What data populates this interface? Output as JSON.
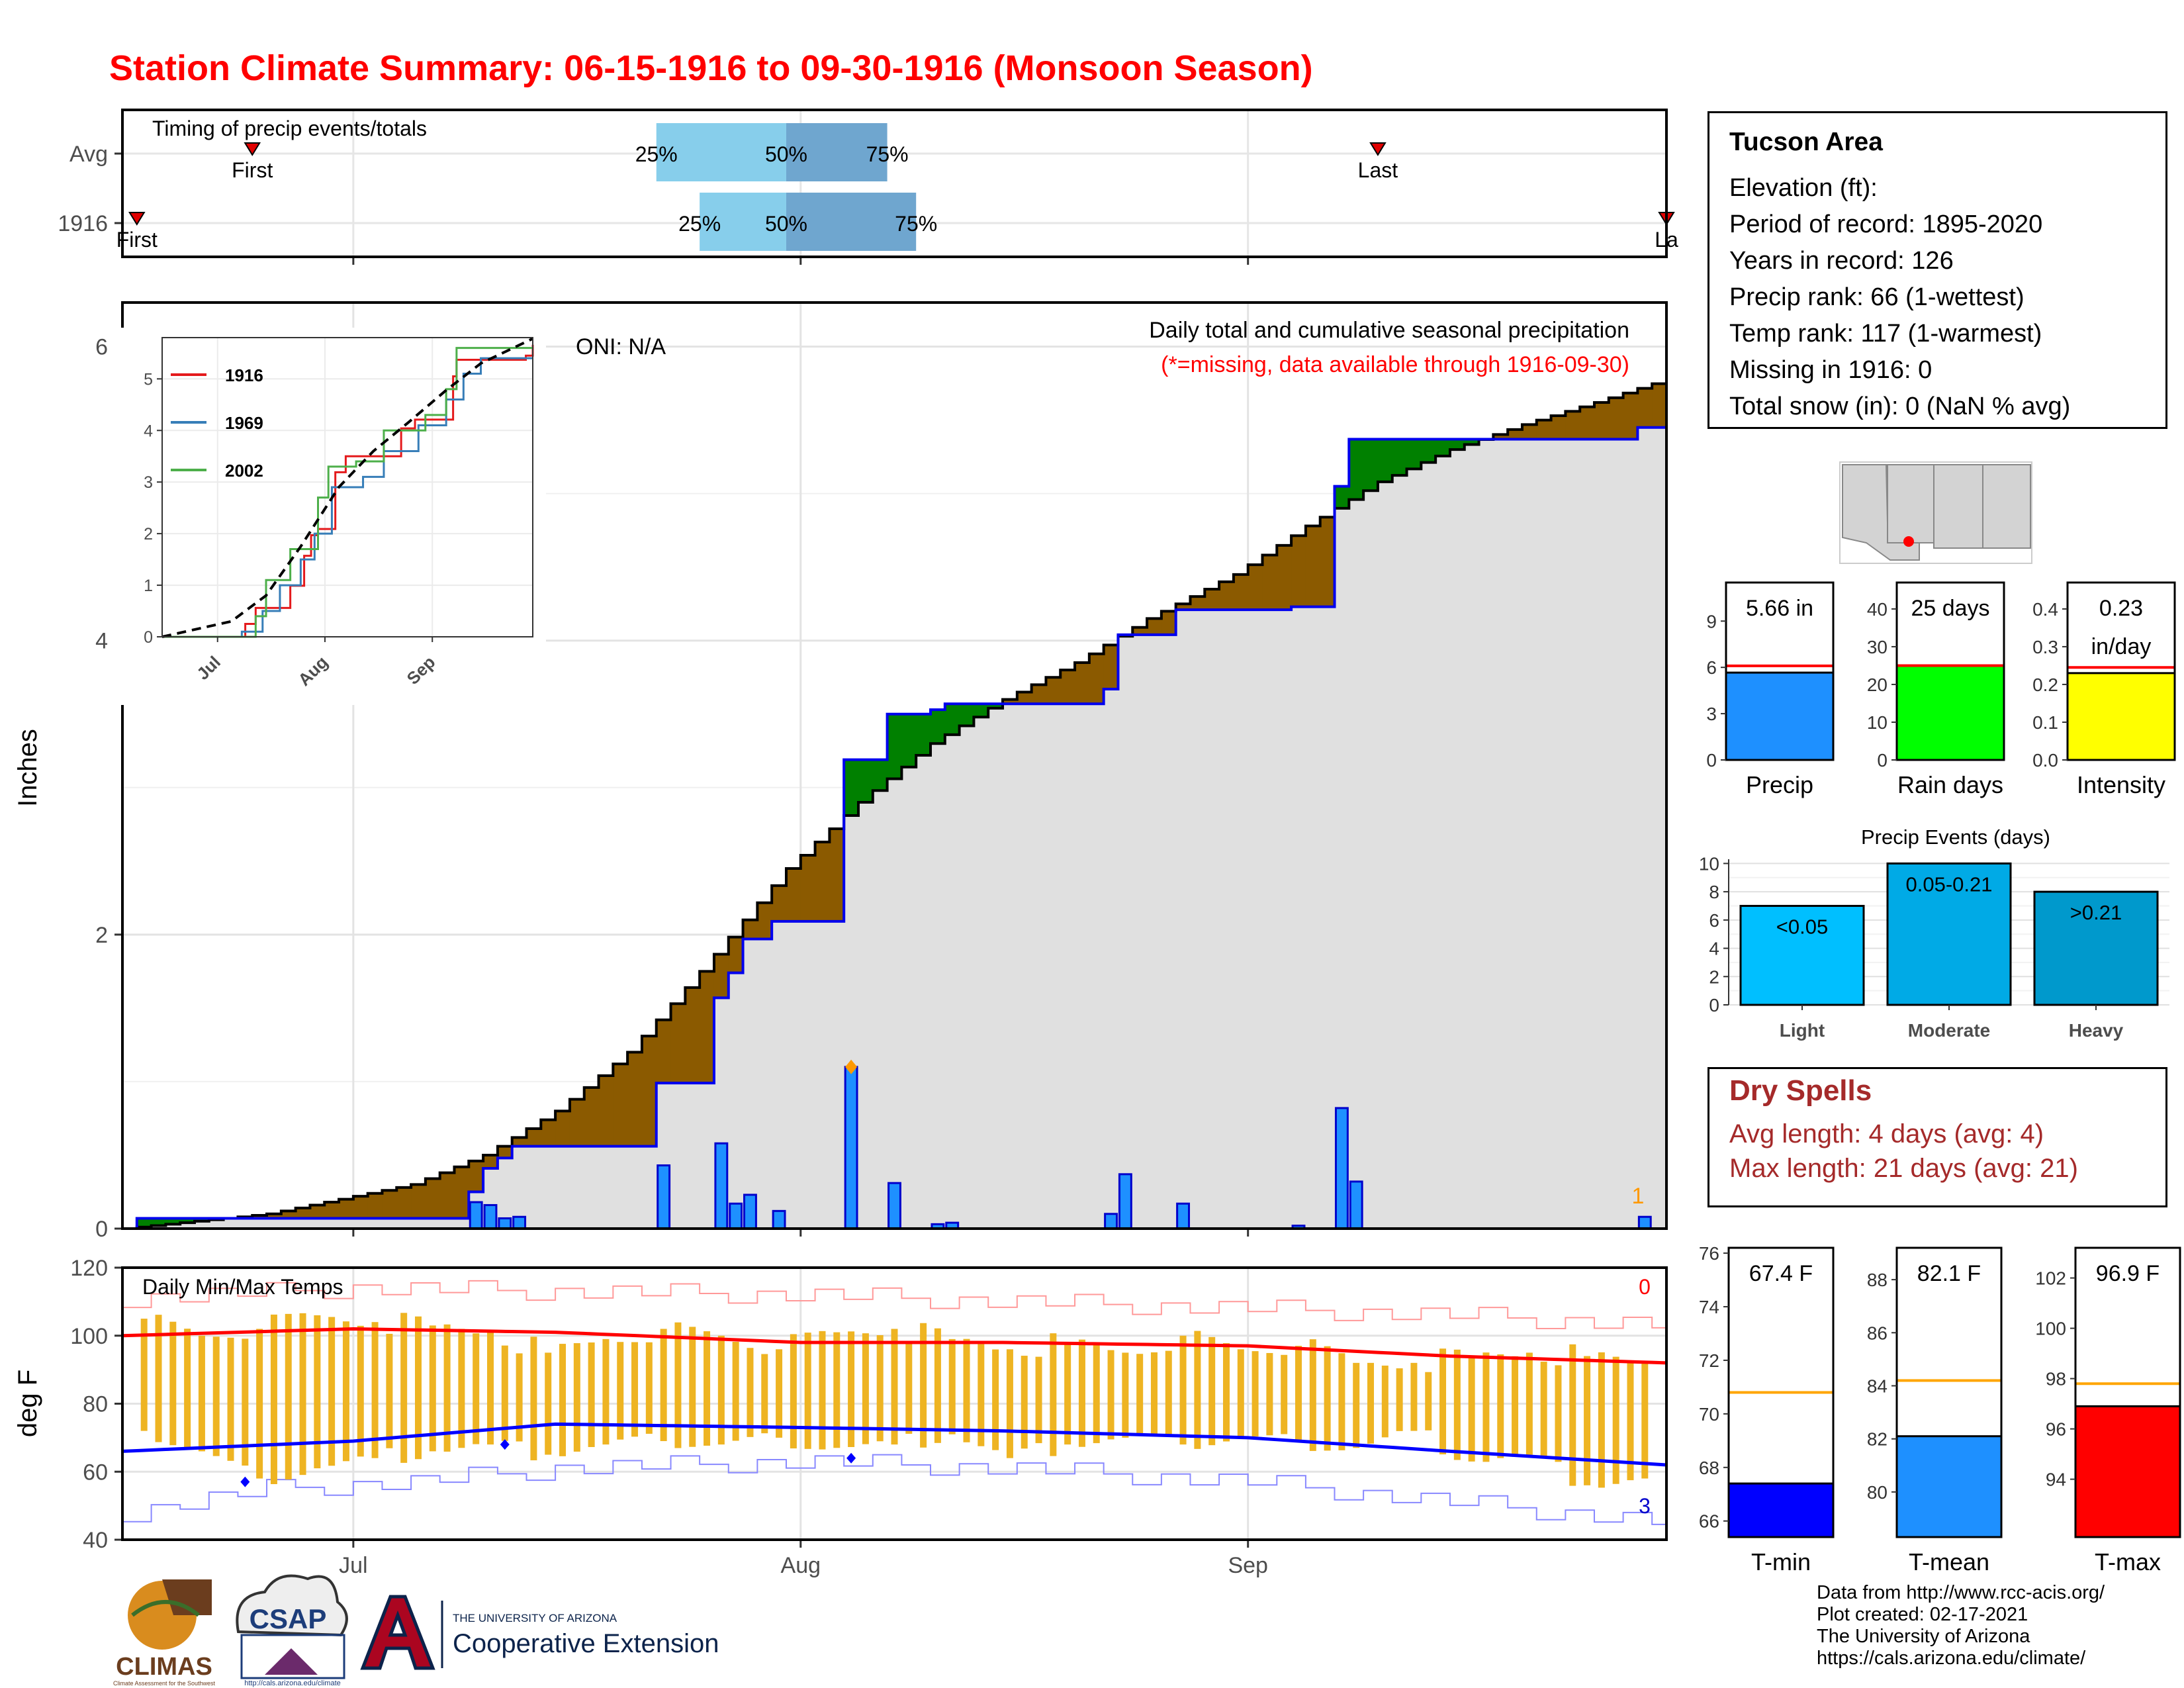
{
  "title": "Station Climate Summary: 06-15-1916 to 09-30-1916 (Monsoon Season)",
  "timing": {
    "label": "Timing of precip events/totals",
    "rows": [
      {
        "name": "Avg",
        "first": "2016-06-24",
        "last": "2016-09-10",
        "p25": "2016-07-22",
        "p50": "2016-07-31",
        "p75": "2016-08-07",
        "first_label": "First",
        "last_label": "Last",
        "p25_label": "25%",
        "p50_label": "50%",
        "p75_label": "75%"
      },
      {
        "name": "1916",
        "first": "2016-06-16",
        "last": "2016-09-30",
        "p25": "2016-07-25",
        "p50": "2016-07-31",
        "p75": "2016-08-09",
        "first_label": "First",
        "last_label": "La",
        "p25_label": "25%",
        "p50_label": "50%",
        "p75_label": "75%"
      }
    ]
  },
  "precip_panel": {
    "ylabel": "Inches",
    "oni": "ONI: N/A",
    "note_title": "Daily total and cumulative seasonal precipitation",
    "note_missing": "(*=missing, data available through 1916-09-30)",
    "corner_count": "1"
  },
  "inset": {
    "legend": [
      {
        "name": "1916",
        "color": "#e41a1c"
      },
      {
        "name": "1969",
        "color": "#377eb8"
      },
      {
        "name": "2002",
        "color": "#4daf4a"
      }
    ]
  },
  "temp_panel": {
    "title": "Daily Min/Max Temps",
    "ylabel": "deg F",
    "corner_top": "0",
    "corner_bottom": "3"
  },
  "month_ticks": [
    "Jul",
    "Aug",
    "Sep"
  ],
  "info": {
    "title": "Tucson Area",
    "lines": [
      "Elevation (ft):",
      "Period of record: 1895-2020",
      "Years in record: 126",
      "Precip rank: 66 (1-wettest)",
      "Temp rank: 117 (1-warmest)",
      "Missing in 1916: 0",
      "Total snow (in): 0 (NaN % avg)"
    ]
  },
  "summary_bars": [
    {
      "name": "Precip",
      "value": 5.66,
      "label": "5.66 in",
      "avg": 6.1,
      "ylim": [
        0,
        11.5
      ],
      "ticks": [
        0,
        3,
        6,
        9
      ],
      "color": "#1e90ff"
    },
    {
      "name": "Rain days",
      "value": 25,
      "label": "25 days",
      "avg": 25,
      "ylim": [
        0,
        47
      ],
      "ticks": [
        0,
        10,
        20,
        30,
        40
      ],
      "color": "#00ff00"
    },
    {
      "name": "Intensity",
      "value": 0.23,
      "label": "0.23 in/day",
      "label_lines": [
        "0.23",
        "in/day"
      ],
      "avg": 0.245,
      "ylim": [
        0,
        0.47
      ],
      "ticks": [
        "0.0",
        "0.1",
        "0.2",
        "0.3",
        "0.4"
      ],
      "color": "#ffff00"
    }
  ],
  "events": {
    "title": "Precip Events (days)",
    "ylim": [
      0,
      10.3
    ],
    "ticks": [
      0,
      2,
      4,
      6,
      8,
      10
    ],
    "bars": [
      {
        "name": "Light",
        "value": 7,
        "label": "<0.05",
        "color": "#00bfff"
      },
      {
        "name": "Moderate",
        "value": 10,
        "label": "0.05-0.21",
        "color": "#00aae6"
      },
      {
        "name": "Heavy",
        "value": 8,
        "label": ">0.21",
        "color": "#0099cc"
      }
    ]
  },
  "dry_spells": {
    "title": "Dry Spells",
    "avg_line": "Avg length: 4 days (avg: 4)",
    "max_line": "Max length: 21 days (avg: 21)"
  },
  "temp_bars": [
    {
      "name": "T-min",
      "value": 67.4,
      "label": "67.4 F",
      "avg": 70.8,
      "ylim": [
        65.4,
        76.2
      ],
      "ticks": [
        66,
        68,
        70,
        72,
        74,
        76
      ],
      "color": "#0000ff"
    },
    {
      "name": "T-mean",
      "value": 82.1,
      "label": "82.1 F",
      "avg": 84.2,
      "ylim": [
        78.3,
        89.2
      ],
      "ticks": [
        80,
        82,
        84,
        86,
        88
      ],
      "color": "#1e90ff"
    },
    {
      "name": "T-max",
      "value": 96.9,
      "label": "96.9 F",
      "avg": 97.8,
      "ylim": [
        91.7,
        103.2
      ],
      "ticks": [
        94,
        96,
        98,
        100,
        102
      ],
      "color": "#ff0000"
    }
  ],
  "credits": [
    "Data from http://www.rcc-acis.org/",
    "Plot created: 02-17-2021",
    "The University of Arizona",
    "https://cals.arizona.edu/climate/"
  ],
  "logos": {
    "climas": "CLIMAS",
    "csap": "CSAP",
    "ua_small": "THE UNIVERSITY OF ARIZONA",
    "ua_big": "Cooperative Extension",
    "climas_sub": "Climate Assessment for the Southwest",
    "csap_url": "http://cals.arizona.edu/climate"
  },
  "chart_data": {
    "type": "area",
    "title": "Daily total and cumulative seasonal precipitation",
    "ylabel": "Inches",
    "x_range": [
      "1916-06-15",
      "1916-09-30"
    ],
    "ylim": [
      0,
      6.3
    ],
    "yticks": [
      0,
      2,
      4,
      6
    ],
    "daily_precip_1916": [
      {
        "date": "1916-07-09",
        "in": 0.18
      },
      {
        "date": "1916-07-10",
        "in": 0.16
      },
      {
        "date": "1916-07-11",
        "in": 0.07
      },
      {
        "date": "1916-07-12",
        "in": 0.08
      },
      {
        "date": "1916-07-22",
        "in": 0.43
      },
      {
        "date": "1916-07-26",
        "in": 0.58
      },
      {
        "date": "1916-07-27",
        "in": 0.17
      },
      {
        "date": "1916-07-28",
        "in": 0.23
      },
      {
        "date": "1916-07-30",
        "in": 0.12
      },
      {
        "date": "1916-08-04",
        "in": 1.1
      },
      {
        "date": "1916-08-07",
        "in": 0.31
      },
      {
        "date": "1916-08-10",
        "in": 0.03
      },
      {
        "date": "1916-08-11",
        "in": 0.04
      },
      {
        "date": "1916-08-22",
        "in": 0.1
      },
      {
        "date": "1916-08-23",
        "in": 0.37
      },
      {
        "date": "1916-08-27",
        "in": 0.17
      },
      {
        "date": "1916-09-04",
        "in": 0.02
      },
      {
        "date": "1916-09-07",
        "in": 0.82
      },
      {
        "date": "1916-09-08",
        "in": 0.32
      },
      {
        "date": "1916-09-28",
        "in": 0.08
      }
    ],
    "cumulative_1916": [
      {
        "date": "1916-06-15",
        "in": 0.0
      },
      {
        "date": "1916-06-16",
        "in": 0.07
      },
      {
        "date": "1916-07-09",
        "in": 0.25
      },
      {
        "date": "1916-07-10",
        "in": 0.41
      },
      {
        "date": "1916-07-11",
        "in": 0.48
      },
      {
        "date": "1916-07-12",
        "in": 0.56
      },
      {
        "date": "1916-07-22",
        "in": 0.99
      },
      {
        "date": "1916-07-26",
        "in": 1.57
      },
      {
        "date": "1916-07-27",
        "in": 1.74
      },
      {
        "date": "1916-07-28",
        "in": 1.97
      },
      {
        "date": "1916-07-30",
        "in": 2.09
      },
      {
        "date": "1916-08-04",
        "in": 3.19
      },
      {
        "date": "1916-08-07",
        "in": 3.5
      },
      {
        "date": "1916-08-10",
        "in": 3.53
      },
      {
        "date": "1916-08-11",
        "in": 3.57
      },
      {
        "date": "1916-08-22",
        "in": 3.67
      },
      {
        "date": "1916-08-23",
        "in": 4.04
      },
      {
        "date": "1916-08-27",
        "in": 4.21
      },
      {
        "date": "1916-09-04",
        "in": 4.23
      },
      {
        "date": "1916-09-07",
        "in": 5.05
      },
      {
        "date": "1916-09-08",
        "in": 5.37
      },
      {
        "date": "1916-09-28",
        "in": 5.45
      },
      {
        "date": "1916-09-30",
        "in": 5.66
      }
    ],
    "cumulative_avg": [
      {
        "date": "1916-06-15",
        "in": 0.0
      },
      {
        "date": "1916-06-25",
        "in": 0.1
      },
      {
        "date": "1916-07-05",
        "in": 0.3
      },
      {
        "date": "1916-07-10",
        "in": 0.5
      },
      {
        "date": "1916-07-15",
        "in": 0.8
      },
      {
        "date": "1916-07-20",
        "in": 1.2
      },
      {
        "date": "1916-07-25",
        "in": 1.75
      },
      {
        "date": "1916-07-31",
        "in": 2.45
      },
      {
        "date": "1916-08-05",
        "in": 2.9
      },
      {
        "date": "1916-08-10",
        "in": 3.3
      },
      {
        "date": "1916-08-15",
        "in": 3.6
      },
      {
        "date": "1916-08-20",
        "in": 3.85
      },
      {
        "date": "1916-08-25",
        "in": 4.15
      },
      {
        "date": "1916-08-31",
        "in": 4.45
      },
      {
        "date": "1916-09-05",
        "in": 4.78
      },
      {
        "date": "1916-09-10",
        "in": 5.08
      },
      {
        "date": "1916-09-15",
        "in": 5.3
      },
      {
        "date": "1916-09-20",
        "in": 5.47
      },
      {
        "date": "1916-09-25",
        "in": 5.62
      },
      {
        "date": "1916-09-30",
        "in": 5.78
      }
    ],
    "inset": {
      "yticks": [
        0,
        1,
        2,
        3,
        4,
        5
      ],
      "ylim": [
        0,
        5.8
      ],
      "xticks": [
        "Jul",
        "Aug",
        "Sep"
      ],
      "series": [
        {
          "name": "1916",
          "points": [
            [
              "1916-06-15",
              0
            ],
            [
              "1916-07-09",
              0.25
            ],
            [
              "1916-07-12",
              0.56
            ],
            [
              "1916-07-22",
              0.99
            ],
            [
              "1916-07-26",
              1.57
            ],
            [
              "1916-07-28",
              1.97
            ],
            [
              "1916-07-30",
              2.09
            ],
            [
              "1916-08-04",
              3.19
            ],
            [
              "1916-08-07",
              3.5
            ],
            [
              "1916-08-23",
              4.04
            ],
            [
              "1916-08-27",
              4.21
            ],
            [
              "1916-09-07",
              5.05
            ],
            [
              "1916-09-08",
              5.37
            ],
            [
              "1916-09-28",
              5.45
            ],
            [
              "1916-09-30",
              5.66
            ]
          ]
        },
        {
          "name": "1969",
          "points": [
            [
              "1916-06-15",
              0
            ],
            [
              "1916-07-08",
              0.1
            ],
            [
              "1916-07-14",
              0.5
            ],
            [
              "1916-07-19",
              1.0
            ],
            [
              "1916-07-25",
              1.5
            ],
            [
              "1916-07-29",
              2.0
            ],
            [
              "1916-08-03",
              2.9
            ],
            [
              "1916-08-12",
              3.1
            ],
            [
              "1916-08-18",
              3.6
            ],
            [
              "1916-08-28",
              4.1
            ],
            [
              "1916-09-05",
              4.6
            ],
            [
              "1916-09-10",
              5.1
            ],
            [
              "1916-09-15",
              5.4
            ],
            [
              "1916-09-30",
              5.4
            ]
          ]
        },
        {
          "name": "2002",
          "points": [
            [
              "1916-06-15",
              0
            ],
            [
              "1916-07-12",
              0.4
            ],
            [
              "1916-07-15",
              1.1
            ],
            [
              "1916-07-22",
              1.7
            ],
            [
              "1916-07-30",
              2.7
            ],
            [
              "1916-08-02",
              3.3
            ],
            [
              "1916-08-10",
              3.4
            ],
            [
              "1916-08-18",
              4.0
            ],
            [
              "1916-08-30",
              4.3
            ],
            [
              "1916-09-05",
              4.8
            ],
            [
              "1916-09-08",
              5.6
            ],
            [
              "1916-09-30",
              5.6
            ]
          ]
        },
        {
          "name": "Avg",
          "points": [
            [
              "1916-06-15",
              0
            ],
            [
              "1916-07-05",
              0.3
            ],
            [
              "1916-07-15",
              0.8
            ],
            [
              "1916-07-25",
              1.75
            ],
            [
              "1916-08-05",
              2.9
            ],
            [
              "1916-08-15",
              3.6
            ],
            [
              "1916-08-25",
              4.15
            ],
            [
              "1916-09-05",
              4.78
            ],
            [
              "1916-09-15",
              5.3
            ],
            [
              "1916-09-30",
              5.78
            ]
          ]
        }
      ]
    },
    "temps": {
      "title": "Daily Min/Max Temps",
      "ylabel": "deg F",
      "ylim": [
        40,
        120
      ],
      "yticks": [
        40,
        60,
        80,
        100,
        120
      ],
      "daily_range": [
        {
          "date": "1916-06-16",
          "min": 72,
          "max": 105
        },
        {
          "date": "1916-06-20",
          "min": 66,
          "max": 100
        },
        {
          "date": "1916-06-24",
          "min": 58,
          "max": 102
        },
        {
          "date": "1916-06-28",
          "min": 61,
          "max": 106
        },
        {
          "date": "1916-07-02",
          "min": 64,
          "max": 104
        },
        {
          "date": "1916-07-06",
          "min": 66,
          "max": 103
        },
        {
          "date": "1916-07-10",
          "min": 68,
          "max": 101
        },
        {
          "date": "1916-07-14",
          "min": 65,
          "max": 95
        },
        {
          "date": "1916-07-18",
          "min": 68,
          "max": 99
        },
        {
          "date": "1916-07-22",
          "min": 69,
          "max": 102
        },
        {
          "date": "1916-07-26",
          "min": 68,
          "max": 100
        },
        {
          "date": "1916-07-30",
          "min": 70,
          "max": 96
        },
        {
          "date": "1916-08-03",
          "min": 67,
          "max": 101
        },
        {
          "date": "1916-08-07",
          "min": 68,
          "max": 102
        },
        {
          "date": "1916-08-11",
          "min": 71,
          "max": 99
        },
        {
          "date": "1916-08-15",
          "min": 64,
          "max": 96
        },
        {
          "date": "1916-08-19",
          "min": 68,
          "max": 98
        },
        {
          "date": "1916-08-23",
          "min": 70,
          "max": 95
        },
        {
          "date": "1916-08-27",
          "min": 68,
          "max": 100
        },
        {
          "date": "1916-08-31",
          "min": 70,
          "max": 96
        },
        {
          "date": "1916-09-04",
          "min": 69,
          "max": 97
        },
        {
          "date": "1916-09-08",
          "min": 67,
          "max": 92
        },
        {
          "date": "1916-09-12",
          "min": 72,
          "max": 92
        },
        {
          "date": "1916-09-16",
          "min": 63,
          "max": 94
        },
        {
          "date": "1916-09-20",
          "min": 65,
          "max": 95
        },
        {
          "date": "1916-09-24",
          "min": 56,
          "max": 94
        },
        {
          "date": "1916-09-28",
          "min": 58,
          "max": 92
        }
      ],
      "avg_max": [
        [
          "1916-06-15",
          100
        ],
        [
          "1916-07-01",
          102
        ],
        [
          "1916-07-15",
          101
        ],
        [
          "1916-08-01",
          98
        ],
        [
          "1916-08-15",
          98
        ],
        [
          "1916-09-01",
          97
        ],
        [
          "1916-09-15",
          94
        ],
        [
          "1916-09-30",
          92
        ]
      ],
      "avg_min": [
        [
          "1916-06-15",
          66
        ],
        [
          "1916-07-01",
          69
        ],
        [
          "1916-07-15",
          74
        ],
        [
          "1916-08-01",
          73
        ],
        [
          "1916-08-15",
          72
        ],
        [
          "1916-09-01",
          70
        ],
        [
          "1916-09-15",
          66
        ],
        [
          "1916-09-30",
          62
        ]
      ],
      "record_max": [
        [
          "1916-06-15",
          111
        ],
        [
          "1916-07-01",
          114
        ],
        [
          "1916-07-15",
          113
        ],
        [
          "1916-08-01",
          112
        ],
        [
          "1916-08-15",
          110
        ],
        [
          "1916-09-01",
          108
        ],
        [
          "1916-09-15",
          106
        ],
        [
          "1916-09-30",
          103
        ]
      ],
      "record_min": [
        [
          "1916-06-15",
          48
        ],
        [
          "1916-06-25",
          55
        ],
        [
          "1916-07-05",
          57
        ],
        [
          "1916-07-15",
          61
        ],
        [
          "1916-08-01",
          63
        ],
        [
          "1916-08-15",
          61
        ],
        [
          "1916-09-01",
          57
        ],
        [
          "1916-09-15",
          51
        ],
        [
          "1916-09-30",
          45
        ]
      ],
      "record_markers": [
        [
          "1916-06-23",
          57
        ],
        [
          "1916-07-11",
          68
        ],
        [
          "1916-08-04",
          64
        ]
      ]
    }
  }
}
